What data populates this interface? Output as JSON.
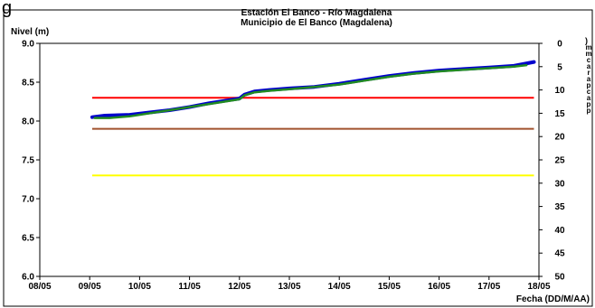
{
  "corner_text": "g",
  "chart_data": {
    "type": "line",
    "title": "Estación El Banco - Río Magdalena",
    "subtitle": "Municipio de El Banco (Magdalena)",
    "ylabel": "Nivel (m)",
    "xlabel": "Fecha (DD/M/AA)",
    "y2label_fragment": ")",
    "y2label_chars": [
      "m",
      "m",
      "c",
      "a",
      "r",
      "a",
      "p",
      "c",
      "a",
      "p",
      "p"
    ],
    "ylim": [
      6.0,
      9.0
    ],
    "yticks": [
      "6.0",
      "6.5",
      "7.0",
      "7.5",
      "8.0",
      "8.5",
      "9.0"
    ],
    "y2lim": [
      0,
      50
    ],
    "y2ticks": [
      "0",
      "5",
      "10",
      "15",
      "20",
      "25",
      "30",
      "35",
      "40",
      "45",
      "50"
    ],
    "xlim": [
      0,
      10
    ],
    "xticks": [
      "08/05",
      "09/05",
      "10/05",
      "11/05",
      "12/05",
      "13/05",
      "14/05",
      "15/05",
      "16/05",
      "17/05",
      "18/05"
    ],
    "grid": false,
    "legend": "none",
    "threshold_lines": [
      {
        "value": 8.3,
        "x_start": 1.05,
        "x_end": 9.9,
        "color": "#ff0000"
      },
      {
        "value": 7.9,
        "x_start": 1.05,
        "x_end": 9.9,
        "color": "#a0522d"
      },
      {
        "value": 7.3,
        "x_start": 1.05,
        "x_end": 9.9,
        "color": "#ffff00"
      }
    ],
    "series": [
      {
        "color": "#0000cc",
        "x": [
          1.05,
          1.3,
          1.8,
          2.2,
          2.6,
          3.0,
          3.4,
          3.8,
          4.0,
          4.1,
          4.3,
          4.6,
          5.0,
          5.5,
          6.0,
          6.5,
          7.0,
          7.5,
          8.0,
          8.5,
          9.0,
          9.5,
          9.9
        ],
        "y": [
          8.05,
          8.07,
          8.08,
          8.11,
          8.14,
          8.18,
          8.23,
          8.27,
          8.29,
          8.34,
          8.38,
          8.4,
          8.42,
          8.44,
          8.48,
          8.53,
          8.58,
          8.62,
          8.65,
          8.67,
          8.69,
          8.71,
          8.76
        ]
      },
      {
        "color": "#228b22",
        "x": [
          1.1,
          1.4,
          1.8,
          2.2,
          2.6,
          3.0,
          3.4,
          3.8,
          4.0,
          4.1,
          4.3,
          4.6,
          5.0,
          5.5,
          6.0,
          6.5,
          7.0,
          7.5,
          8.0,
          8.5,
          9.0,
          9.5,
          9.75
        ],
        "y": [
          8.04,
          8.04,
          8.06,
          8.1,
          8.14,
          8.18,
          8.22,
          8.26,
          8.28,
          8.33,
          8.37,
          8.39,
          8.41,
          8.44,
          8.47,
          8.52,
          8.57,
          8.61,
          8.64,
          8.66,
          8.68,
          8.7,
          8.72
        ]
      }
    ]
  }
}
